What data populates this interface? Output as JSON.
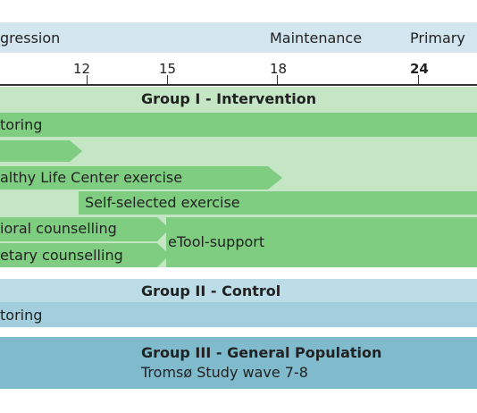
{
  "phases": [
    "gression",
    "Maintenance",
    "Primary"
  ],
  "ticks": [
    "12",
    "15",
    "18",
    "24"
  ],
  "group1": {
    "title": "Group I - Intervention",
    "rows": {
      "monitoring": "toring",
      "hlc_exercise": "althy Life Center exercise",
      "self_selected": "Self-selected exercise",
      "behavioral": "ioral counselling",
      "dietary": "etary counselling",
      "etool": "eTool-support"
    }
  },
  "group2": {
    "title": "Group II - Control",
    "monitoring": "toring"
  },
  "group3": {
    "title": "Group III - General Population",
    "subtitle": "Tromsø Study wave 7-8"
  },
  "colors": {
    "phase_band": "#d3e5ee",
    "group1_bg": "#c4e6c5",
    "group1_bar": "#7fcd80",
    "group2_header": "#bcdde7",
    "group2_bar": "#a3cedd",
    "group3_bg": "#7fbacd"
  }
}
